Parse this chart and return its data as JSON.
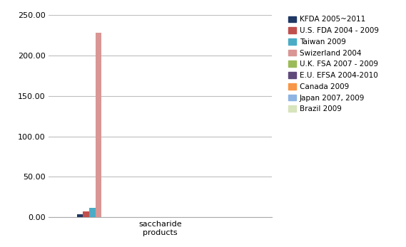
{
  "category": "saccharide\nproducts",
  "series": [
    {
      "label": "KFDA 2005~2011",
      "value": 3.5,
      "color": "#1F3864"
    },
    {
      "label": "U.S. FDA 2004 - 2009",
      "value": 7.0,
      "color": "#C0504D"
    },
    {
      "label": "Taiwan 2009",
      "value": 12.0,
      "color": "#4BACC6"
    },
    {
      "label": "Swizerland 2004",
      "value": 228.0,
      "color": "#D99694"
    },
    {
      "label": "U.K. FSA 2007 - 2009",
      "value": 0.5,
      "color": "#9BBB59"
    },
    {
      "label": "E.U. EFSA 2004-2010",
      "value": 0.5,
      "color": "#604A7B"
    },
    {
      "label": "Canada 2009",
      "value": 0.5,
      "color": "#F79646"
    },
    {
      "label": "Japan 2007, 2009",
      "value": 0.5,
      "color": "#8DB4E2"
    },
    {
      "label": "Brazil 2009",
      "value": 0.5,
      "color": "#D7E4BC"
    }
  ],
  "ylim": [
    0,
    250
  ],
  "yticks": [
    0,
    50,
    100,
    150,
    200,
    250
  ],
  "ytick_labels": [
    "0.00",
    "50.00",
    "100.00",
    "150.00",
    "200.00",
    "250.00"
  ],
  "bar_width": 0.055,
  "x_center": 1.0,
  "xlim": [
    0.0,
    2.0
  ],
  "background_color": "#FFFFFF",
  "grid_color": "#BEBEBE",
  "spine_color": "#AAAAAA",
  "legend_fontsize": 7.5,
  "tick_fontsize": 8
}
